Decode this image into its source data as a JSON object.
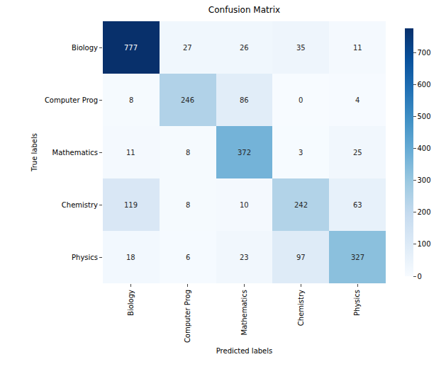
{
  "chart_data": {
    "type": "heatmap",
    "title": "Confusion Matrix",
    "x_label": "Predicted labels",
    "y_label": "True labels",
    "x_categories": [
      "Biology",
      "Computer Prog",
      "Mathematics",
      "Chemistry",
      "Physics"
    ],
    "y_categories": [
      "Biology",
      "Computer Prog",
      "Mathematics",
      "Chemistry",
      "Physics"
    ],
    "cells": [
      [
        777,
        27,
        26,
        35,
        11
      ],
      [
        8,
        246,
        86,
        0,
        4
      ],
      [
        11,
        8,
        372,
        3,
        25
      ],
      [
        119,
        8,
        10,
        242,
        63
      ],
      [
        18,
        6,
        23,
        97,
        327
      ]
    ],
    "color": "Blues",
    "colorbar_range": [
      0,
      777
    ],
    "colorbar_ticks": [
      0,
      100,
      200,
      300,
      400,
      500,
      600,
      700
    ],
    "data_labels": true
  }
}
